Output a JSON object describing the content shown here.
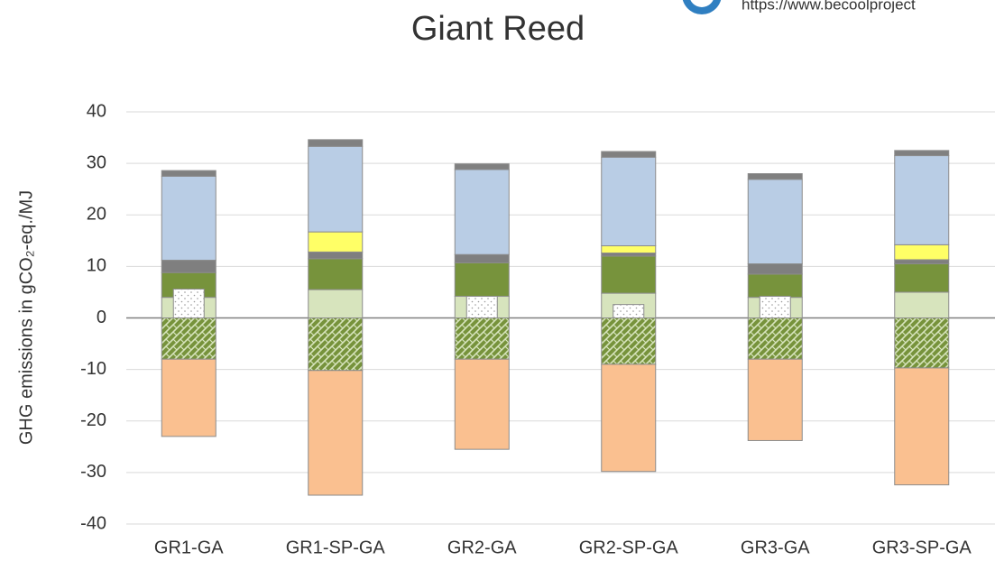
{
  "chart_data": {
    "type": "stacked_bar",
    "title": "Giant Reed",
    "source": "https://www.becoolproject",
    "y_label": "GHG emissions in gCO₂-eq./MJ",
    "categories": [
      "GR1-GA",
      "GR1-SP-GA",
      "GR2-GA",
      "GR2-SP-GA",
      "GR3-GA",
      "GR3-SP-GA"
    ],
    "ylim": [
      -40,
      40
    ],
    "yticks": [
      -40,
      -30,
      -20,
      -10,
      0,
      10,
      20,
      30,
      40
    ],
    "grid": true,
    "series": [
      {
        "color": "#d7e4bd",
        "values": [
          4.0,
          5.5,
          4.2,
          4.8,
          4.0,
          5.0
        ]
      },
      {
        "color": "#77933c",
        "values": [
          4.8,
          6.0,
          6.5,
          7.2,
          4.5,
          5.5
        ]
      },
      {
        "color": "#7f7f7f",
        "values": [
          2.4,
          1.3,
          1.6,
          0.6,
          2.0,
          0.8
        ]
      },
      {
        "color": "#ffff66",
        "values": [
          0,
          3.9,
          0,
          1.4,
          0,
          2.9
        ]
      },
      {
        "color": "#b9cde5",
        "values": [
          16.3,
          16.6,
          16.5,
          17.2,
          16.4,
          17.3
        ]
      },
      {
        "color": "#808080",
        "values": [
          1.1,
          1.3,
          1.1,
          1.1,
          1.1,
          1.0
        ]
      },
      {
        "color": "#77933c",
        "pattern": "hatch",
        "values": [
          -8.0,
          -10.2,
          -8.0,
          -9.0,
          -8.0,
          -9.7
        ]
      },
      {
        "color": "#fac090",
        "values": [
          -15.0,
          -24.2,
          -17.5,
          -20.8,
          -15.8,
          -22.7
        ]
      },
      {
        "color": "#ffffff",
        "pattern": "dots",
        "overlay": true,
        "values": [
          5.6,
          0,
          4.2,
          2.6,
          4.2,
          0
        ]
      }
    ]
  }
}
